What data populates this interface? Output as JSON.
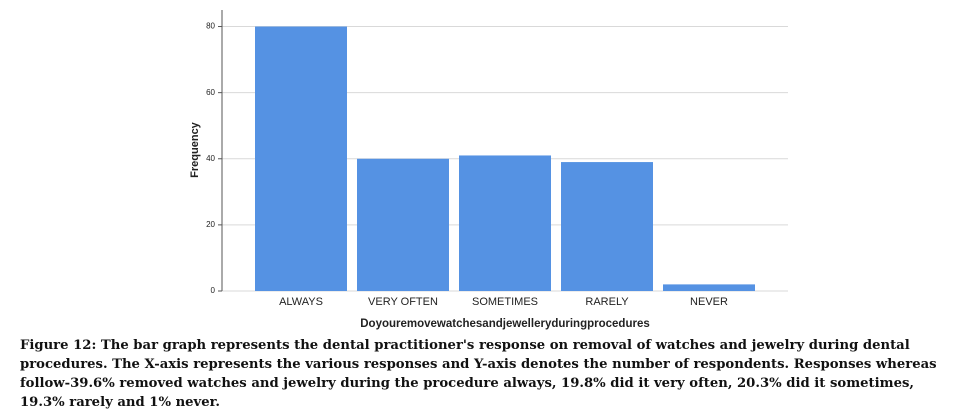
{
  "chart_data": {
    "type": "bar",
    "categories": [
      "ALWAYS",
      "VERY OFTEN",
      "SOMETIMES",
      "RARELY",
      "NEVER"
    ],
    "values": [
      80,
      40,
      41,
      39,
      2
    ],
    "color": "#5592e3",
    "ylim": [
      0,
      85
    ],
    "yticks": [
      0,
      20,
      40,
      60,
      80
    ],
    "grid": true,
    "y_label": "Frequency",
    "x_label": "Doyouremovewatchesandjewelleryduringprocedures"
  },
  "caption": "Figure 12: The bar graph represents the dental practitioner's response on removal of watches and jewelry during dental procedures. The X-axis represents the various responses and Y-axis denotes the number of respondents. Responses whereas follow-39.6% removed watches and jewelry during the procedure always, 19.8% did it very often, 20.3% did it sometimes, 19.3% rarely and 1% never."
}
